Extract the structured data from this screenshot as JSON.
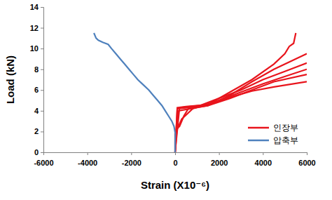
{
  "chart_data": {
    "type": "line",
    "x_label": "Strain (X10⁻⁶)",
    "y_label": "Load (kN)",
    "xlim": [
      -6000,
      6000
    ],
    "ylim": [
      0,
      14
    ],
    "xticks": [
      -6000,
      -4000,
      -2000,
      0,
      2000,
      4000,
      6000
    ],
    "yticks": [
      0,
      2,
      4,
      6,
      8,
      10,
      12,
      14
    ],
    "grid": false,
    "legend": "lower right",
    "series": [
      {
        "name": "인장부",
        "color": "#e8141c",
        "x": [
          0,
          0,
          50,
          100,
          500,
          1500,
          2500,
          3500,
          4500,
          5000,
          5200,
          5400,
          5500
        ],
        "values": [
          0,
          1.8,
          2.1,
          4.3,
          4.4,
          4.6,
          5.8,
          7.0,
          8.5,
          9.5,
          10.2,
          10.5,
          11.5
        ]
      },
      {
        "name": "인장부",
        "color": "#e8141c",
        "x": [
          0,
          50,
          200,
          400,
          600,
          1500,
          2500,
          3500,
          4500,
          6000
        ],
        "values": [
          0,
          2.2,
          2.5,
          3.5,
          4.2,
          4.5,
          5.5,
          6.8,
          8.0,
          9.5
        ]
      },
      {
        "name": "인장부",
        "color": "#e8141c",
        "x": [
          0,
          100,
          1000,
          2000,
          3000,
          4000,
          5000,
          6000
        ],
        "values": [
          0,
          4.2,
          4.4,
          5.2,
          6.0,
          7.0,
          7.8,
          8.6
        ]
      },
      {
        "name": "인장부",
        "color": "#e8141c",
        "x": [
          0,
          50,
          300,
          800,
          2000,
          3000,
          4000,
          5000,
          6000
        ],
        "values": [
          0,
          2.0,
          3.2,
          4.2,
          5.0,
          5.8,
          6.6,
          7.3,
          8.0
        ]
      },
      {
        "name": "인장부",
        "color": "#e8141c",
        "x": [
          0,
          150,
          1500,
          2500,
          3500,
          4500,
          6000
        ],
        "values": [
          0,
          4.0,
          4.5,
          5.2,
          6.0,
          6.8,
          7.5
        ]
      },
      {
        "name": "인장부",
        "color": "#e8141c",
        "x": [
          0,
          200,
          1500,
          2500,
          3500,
          4500,
          6000
        ],
        "values": [
          0,
          4.3,
          4.6,
          5.3,
          5.9,
          6.3,
          6.8
        ]
      },
      {
        "name": "압축부",
        "color": "#4f81bd",
        "x": [
          0,
          0,
          10,
          -50,
          -150,
          -300,
          -450,
          -600,
          -800,
          -1000,
          -1200,
          -1450,
          -1700,
          -1900,
          -2100,
          -2300,
          -2500,
          -2700,
          -2900,
          -3050,
          -3300,
          -3500,
          -3600,
          -3700
        ],
        "values": [
          0,
          1.0,
          1.8,
          2.5,
          3.0,
          3.5,
          4.0,
          4.5,
          5.0,
          5.5,
          6.0,
          6.5,
          7.0,
          7.5,
          8.0,
          8.5,
          9.0,
          9.5,
          10.0,
          10.4,
          10.6,
          10.8,
          11.0,
          11.5
        ]
      }
    ]
  }
}
